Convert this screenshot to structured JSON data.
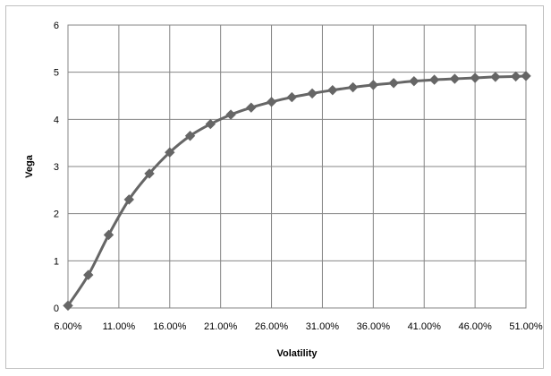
{
  "chart_data": {
    "type": "line",
    "title": "",
    "xlabel": "Volatility",
    "ylabel": "Vega",
    "x_range": [
      0.06,
      0.51
    ],
    "ylim": [
      0,
      6
    ],
    "y_ticks": [
      "0",
      "1",
      "2",
      "3",
      "4",
      "5",
      "6"
    ],
    "x_tick_values": [
      0.06,
      0.11,
      0.16,
      0.21,
      0.26,
      0.31,
      0.36,
      0.41,
      0.46,
      0.51
    ],
    "x_tick_labels": [
      "6.00%",
      "11.00%",
      "16.00%",
      "21.00%",
      "26.00%",
      "31.00%",
      "36.00%",
      "41.00%",
      "46.00%",
      "51.00%"
    ],
    "grid": true,
    "legend": "none",
    "marker": "diamond",
    "series_color": "#666666",
    "x": [
      0.06,
      0.08,
      0.1,
      0.12,
      0.14,
      0.16,
      0.18,
      0.2,
      0.22,
      0.24,
      0.26,
      0.28,
      0.3,
      0.32,
      0.34,
      0.36,
      0.38,
      0.4,
      0.42,
      0.44,
      0.46,
      0.48,
      0.5,
      0.51
    ],
    "series": [
      {
        "values": [
          0.05,
          0.7,
          1.55,
          2.3,
          2.85,
          3.3,
          3.65,
          3.9,
          4.1,
          4.25,
          4.37,
          4.47,
          4.55,
          4.62,
          4.68,
          4.73,
          4.77,
          4.81,
          4.84,
          4.86,
          4.88,
          4.9,
          4.91,
          4.92
        ]
      }
    ]
  }
}
